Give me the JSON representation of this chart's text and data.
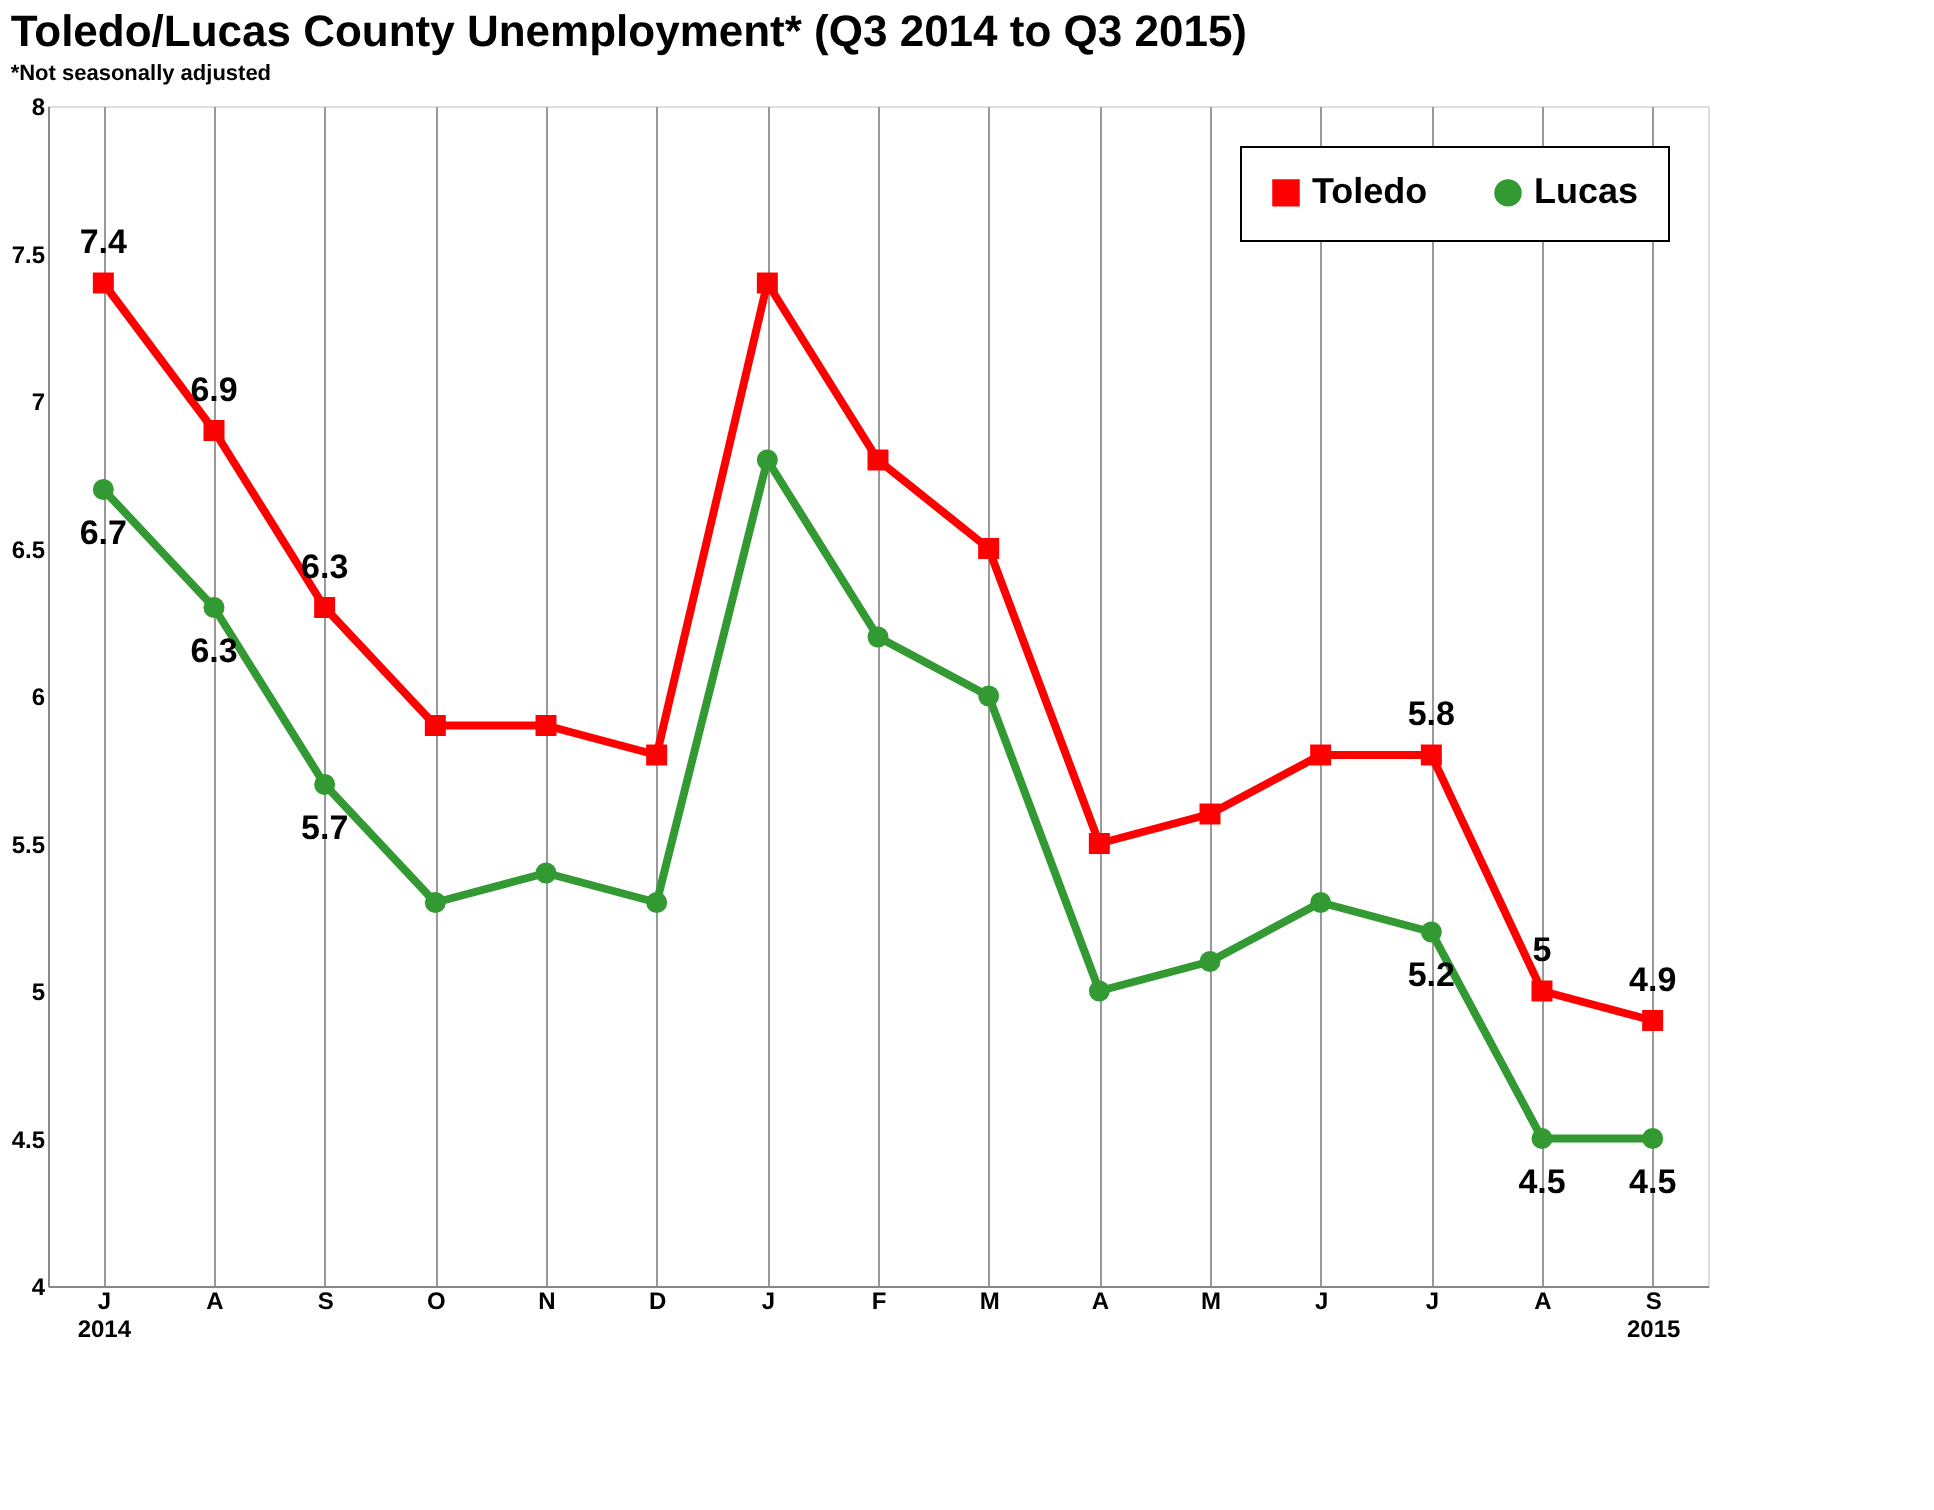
{
  "chart_data": {
    "type": "line",
    "title": "Toledo/Lucas County Unemployment* (Q3 2014 to Q3 2015)",
    "subtitle": "*Not seasonally adjusted",
    "categories": [
      "J\n2014",
      "A",
      "S",
      "O",
      "N",
      "D",
      "J",
      "F",
      "M",
      "A",
      "M",
      "J",
      "J",
      "A",
      "S\n2015"
    ],
    "series": [
      {
        "name": "Toledo",
        "color": "#ff0000",
        "marker": "square",
        "values": [
          7.4,
          6.9,
          6.3,
          5.9,
          5.9,
          5.8,
          7.4,
          6.8,
          6.5,
          5.5,
          5.6,
          5.8,
          5.8,
          5.0,
          4.9
        ],
        "value_labels": [
          "7.4",
          "6.9",
          "6.3",
          null,
          null,
          null,
          null,
          null,
          null,
          null,
          null,
          null,
          "5.8",
          "5",
          "4.9"
        ]
      },
      {
        "name": "Lucas",
        "color": "#339933",
        "marker": "circle",
        "values": [
          6.7,
          6.3,
          5.7,
          5.3,
          5.4,
          5.3,
          6.8,
          6.2,
          6.0,
          5.0,
          5.1,
          5.3,
          5.2,
          4.5,
          4.5
        ],
        "value_labels": [
          "6.7",
          "6.3",
          "5.7",
          null,
          null,
          null,
          null,
          null,
          null,
          null,
          null,
          null,
          "5.2",
          "4.5",
          "4.5"
        ]
      }
    ],
    "ylim": [
      4,
      8
    ],
    "yticks": [
      4,
      4.5,
      5,
      5.5,
      6,
      6.5,
      7,
      7.5,
      8
    ],
    "grid": "x",
    "legend": "top right",
    "line_style": "solid"
  }
}
